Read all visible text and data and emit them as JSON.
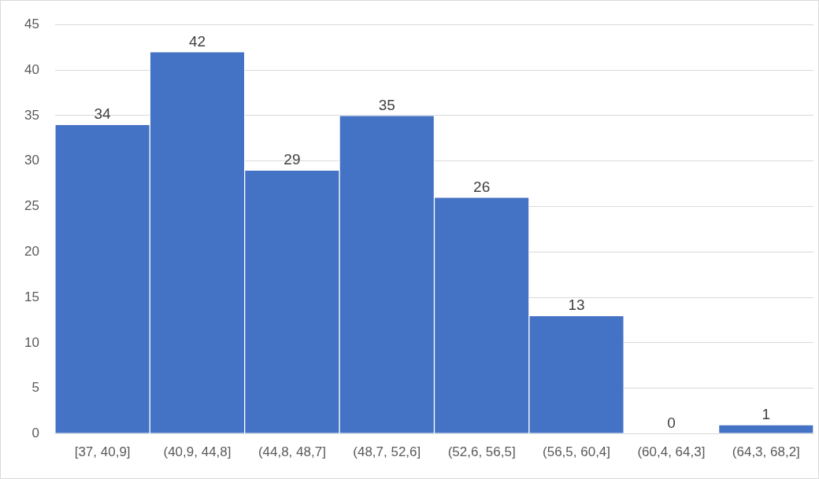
{
  "chart_data": {
    "type": "bar",
    "categories": [
      "[37, 40,9]",
      "(40,9, 44,8]",
      "(44,8, 48,7]",
      "(48,7, 52,6]",
      "(52,6, 56,5]",
      "(56,5, 60,4]",
      "(60,4, 64,3]",
      "(64,3, 68,2]"
    ],
    "values": [
      34,
      42,
      29,
      35,
      26,
      13,
      0,
      1
    ],
    "color": "#4472c4",
    "ylim": [
      0,
      45
    ],
    "yticks": [
      0,
      5,
      10,
      15,
      20,
      25,
      30,
      35,
      40,
      45
    ],
    "grid": "y",
    "legend": false,
    "data_labels": true
  }
}
